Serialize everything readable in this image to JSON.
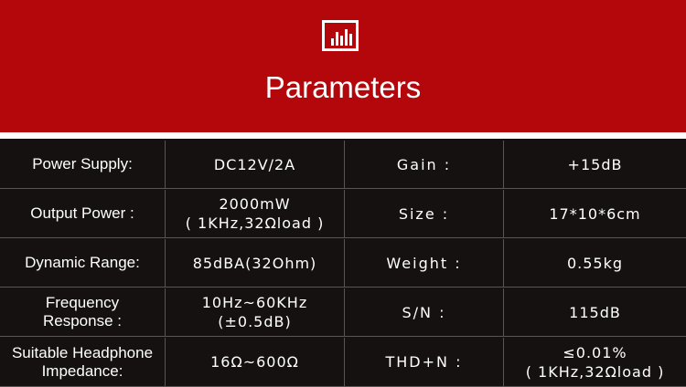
{
  "header": {
    "icon": "bar-chart-icon",
    "title": "Parameters",
    "background": "#b3070c"
  },
  "rows": [
    {
      "label1": [
        "Power Supply:"
      ],
      "value1": [
        "DC12V/2A"
      ],
      "label2": [
        "Gain :"
      ],
      "value2": [
        "+15dB"
      ]
    },
    {
      "label1": [
        "Output Power :"
      ],
      "value1": [
        "2000mW",
        "( 1KHz,32Ωload )"
      ],
      "label2": [
        "Size :"
      ],
      "value2": [
        "17*10*6cm"
      ]
    },
    {
      "label1": [
        "Dynamic Range:"
      ],
      "value1": [
        "85dBA(32Ohm)"
      ],
      "label2": [
        "Weight :"
      ],
      "value2": [
        "0.55kg"
      ]
    },
    {
      "label1": [
        "Frequency",
        "Response :"
      ],
      "value1": [
        "10Hz~60KHz",
        "(±0.5dB)"
      ],
      "label2": [
        "S/N :"
      ],
      "value2": [
        "115dB"
      ]
    },
    {
      "label1": [
        "Suitable Headphone",
        "Impedance:"
      ],
      "value1": [
        "16Ω~600Ω"
      ],
      "label2": [
        "THD+N :"
      ],
      "value2": [
        "≤0.01%",
        "( 1KHz,32Ωload )"
      ]
    }
  ]
}
